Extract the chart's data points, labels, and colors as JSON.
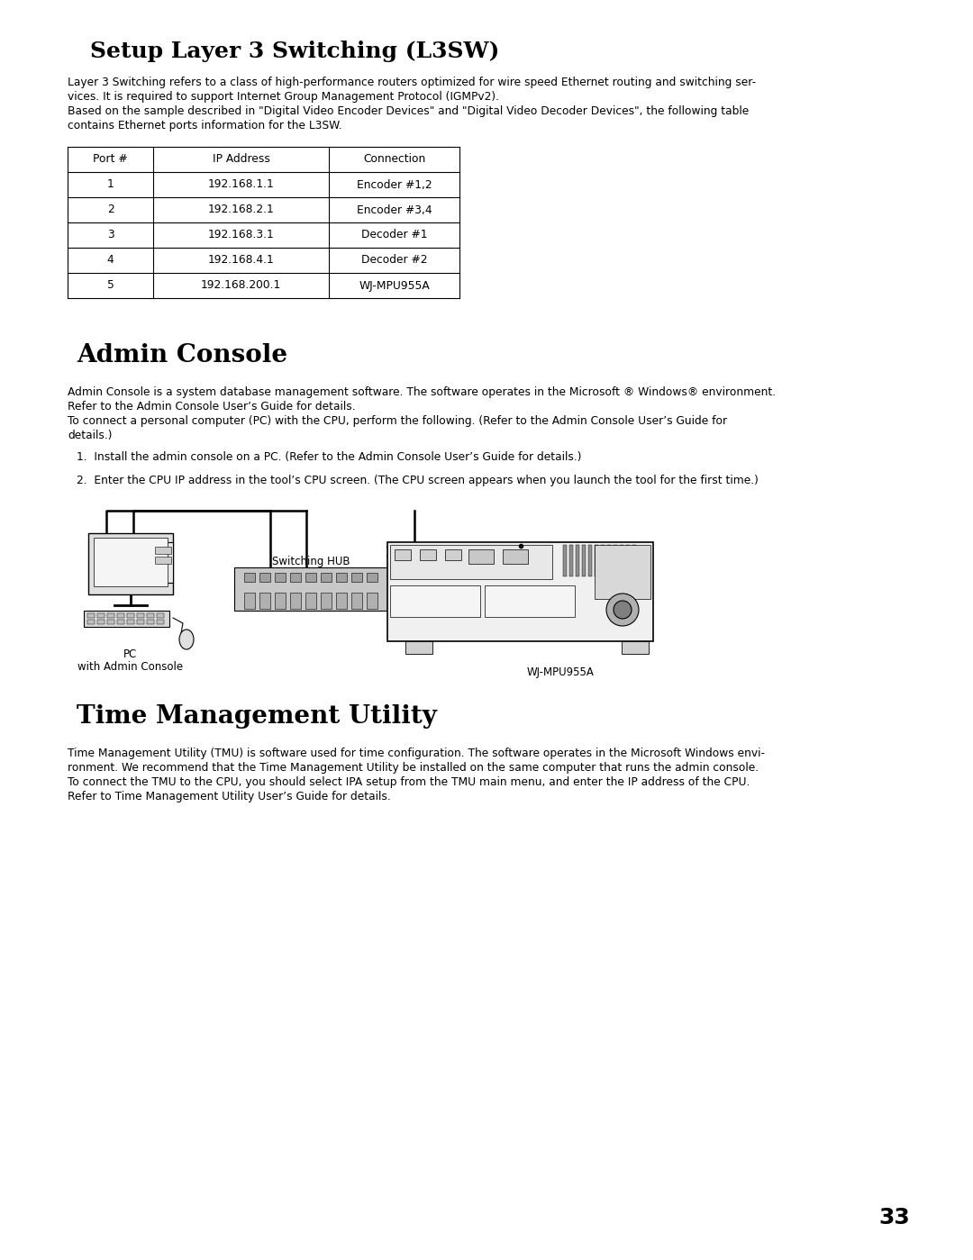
{
  "bg_color": "#ffffff",
  "page_number": "33",
  "section1_title": "Setup Layer 3 Switching (L3SW)",
  "section1_body1a": "Layer 3 Switching refers to a class of high-performance routers optimized for wire speed Ethernet routing and switching ser-",
  "section1_body1b": "vices. It is required to support Internet Group Management Protocol (IGMPv2).",
  "section1_body2a": "Based on the sample described in \"Digital Video Encoder Devices\" and \"Digital Video Decoder Devices\", the following table",
  "section1_body2b": "contains Ethernet ports information for the L3SW.",
  "table_headers": [
    "Port #",
    "IP Address",
    "Connection"
  ],
  "table_rows": [
    [
      "1",
      "192.168.1.1",
      "Encoder #1,2"
    ],
    [
      "2",
      "192.168.2.1",
      "Encoder #3,4"
    ],
    [
      "3",
      "192.168.3.1",
      "Decoder #1"
    ],
    [
      "4",
      "192.168.4.1",
      "Decoder #2"
    ],
    [
      "5",
      "192.168.200.1",
      "WJ-MPU955A"
    ]
  ],
  "section2_title": "Admin Console",
  "section2_body1a": "Admin Console is a system database management software. The software operates in the Microsoft ® Windows® environment.",
  "section2_body1b": "Refer to the Admin Console User’s Guide for details.",
  "section2_body2a": "To connect a personal computer (PC) with the CPU, perform the following. (Refer to the Admin Console User’s Guide for",
  "section2_body2b": "details.)",
  "section2_item1": "1.  Install the admin console on a PC. (Refer to the Admin Console User’s Guide for details.)",
  "section2_item2": "2.  Enter the CPU IP address in the tool’s CPU screen. (The CPU screen appears when you launch the tool for the first time.)",
  "diagram_pc_label": "PC",
  "diagram_pc_sublabel": "with Admin Console",
  "diagram_hub_label": "Switching HUB",
  "diagram_wj_label": "WJ-MPU955A",
  "section3_title": "Time Management Utility",
  "section3_body1a": "Time Management Utility (TMU) is software used for time configuration. The software operates in the Microsoft Windows envi-",
  "section3_body1b": "ronment. We recommend that the Time Management Utility be installed on the same computer that runs the admin console.",
  "section3_body1c": "To connect the TMU to the CPU, you should select IPA setup from the TMU main menu, and enter the IP address of the CPU.",
  "section3_body1d": "Refer to Time Management Utility User’s Guide for details.",
  "text_color": "#000000",
  "border_color": "#000000",
  "body_fontsize": 8.8,
  "title1_fontsize": 18,
  "title2_fontsize": 20,
  "title3_fontsize": 20
}
